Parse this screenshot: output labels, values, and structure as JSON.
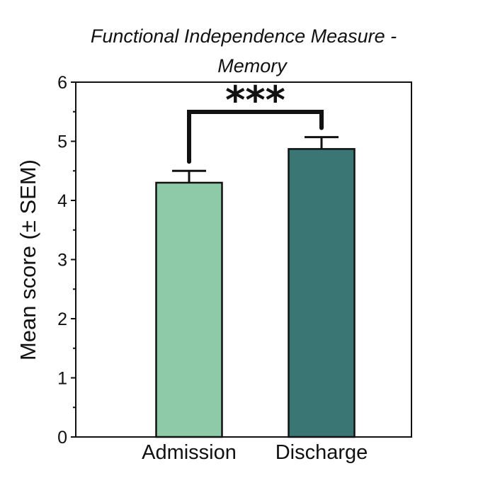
{
  "chart_data": {
    "type": "bar",
    "title_lines": [
      "Functional Independence Measure -",
      "Memory"
    ],
    "xlabel": "",
    "ylabel": "Mean score (± SEM)",
    "categories": [
      "Admission",
      "Discharge"
    ],
    "values": [
      4.3,
      4.87
    ],
    "error": [
      0.2,
      0.2
    ],
    "colors": [
      "#8fcaa8",
      "#3a7774"
    ],
    "ylim": [
      0,
      6
    ],
    "yticks": [
      0,
      1,
      2,
      3,
      4,
      5,
      6
    ],
    "grid": false,
    "annotation": {
      "text": "***",
      "between": [
        "Admission",
        "Discharge"
      ]
    }
  }
}
